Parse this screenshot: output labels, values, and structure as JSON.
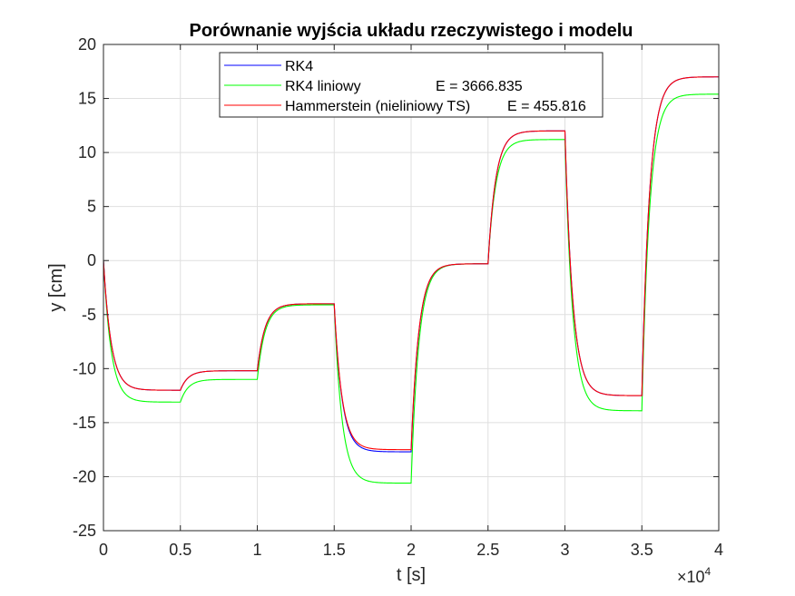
{
  "chart_data": {
    "type": "line",
    "title": "Porównanie wyjścia układu rzeczywistego i modelu",
    "xlabel": "t [s]",
    "ylabel": "y [cm]",
    "xlim": [
      0,
      40000
    ],
    "ylim": [
      -25,
      20
    ],
    "grid": true,
    "legend_position": "top-center",
    "x_tick_values": [
      0,
      5000,
      10000,
      15000,
      20000,
      25000,
      30000,
      35000,
      40000
    ],
    "x_tick_labels": [
      "0",
      "0.5",
      "1",
      "1.5",
      "2",
      "2.5",
      "3",
      "3.5",
      "4"
    ],
    "x_exponent_base": "×10",
    "x_exponent_power": "4",
    "y_ticks": [
      -25,
      -20,
      -15,
      -10,
      -5,
      0,
      5,
      10,
      15,
      20
    ],
    "series": [
      {
        "name": "RK4",
        "color": "#0000ff",
        "y0": 0,
        "tau": 500,
        "steps": [
          {
            "t": 0,
            "level": -12
          },
          {
            "t": 5000,
            "level": -10.2
          },
          {
            "t": 10000,
            "level": -4
          },
          {
            "t": 15000,
            "level": -17.7
          },
          {
            "t": 20000,
            "level": -0.3
          },
          {
            "t": 25000,
            "level": 12
          },
          {
            "t": 30000,
            "level": -12.5
          },
          {
            "t": 35000,
            "level": 17
          }
        ]
      },
      {
        "name": "RK4 liniowy",
        "error_label": "E = 3666.835",
        "color": "#00ff00",
        "y0": 0,
        "tau": 500,
        "steps": [
          {
            "t": 0,
            "level": -13.1
          },
          {
            "t": 5000,
            "level": -11
          },
          {
            "t": 10000,
            "level": -4.1
          },
          {
            "t": 15000,
            "level": -20.6
          },
          {
            "t": 20000,
            "level": -0.3
          },
          {
            "t": 25000,
            "level": 11.2
          },
          {
            "t": 30000,
            "level": -13.9
          },
          {
            "t": 35000,
            "level": 15.4
          }
        ]
      },
      {
        "name": "Hammerstein (nieliniowy TS)",
        "error_label": "E = 455.816",
        "color": "#ff0000",
        "y0": 0,
        "tau": 500,
        "steps": [
          {
            "t": 0,
            "level": -12
          },
          {
            "t": 5000,
            "level": -10.2
          },
          {
            "t": 10000,
            "level": -4
          },
          {
            "t": 15000,
            "level": -17.5
          },
          {
            "t": 20000,
            "level": -0.3
          },
          {
            "t": 25000,
            "level": 12
          },
          {
            "t": 30000,
            "level": -12.5
          },
          {
            "t": 35000,
            "level": 17
          }
        ]
      }
    ]
  }
}
